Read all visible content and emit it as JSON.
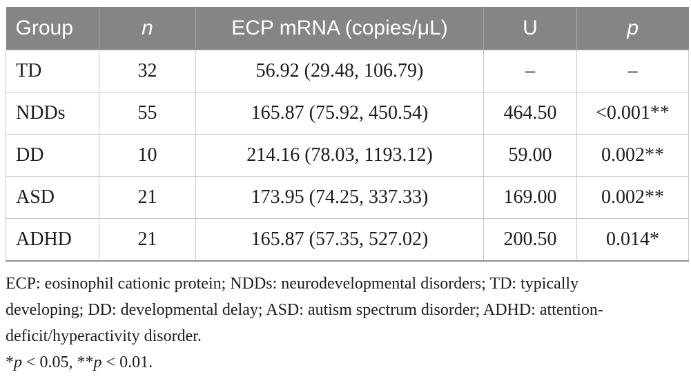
{
  "colors": {
    "header_bg": "#858585",
    "header_text": "#ffffff",
    "header_divider": "#a6a6a6",
    "cell_border": "#c9c9c9",
    "table_bottom_border": "#8f8f8f",
    "body_text": "#1c1c1c"
  },
  "table": {
    "columns": [
      {
        "label": "Group"
      },
      {
        "label": "n"
      },
      {
        "label": "ECP mRNA (copies/μL)"
      },
      {
        "label": "U"
      },
      {
        "label": "p"
      }
    ],
    "rows": [
      {
        "group": "TD",
        "n": "32",
        "ecp": "56.92 (29.48, 106.79)",
        "u": "–",
        "p": "–"
      },
      {
        "group": "NDDs",
        "n": "55",
        "ecp": "165.87 (75.92, 450.54)",
        "u": "464.50",
        "p": "<0.001**"
      },
      {
        "group": "DD",
        "n": "10",
        "ecp": "214.16 (78.03, 1193.12)",
        "u": "59.00",
        "p": "0.002**"
      },
      {
        "group": "ASD",
        "n": "21",
        "ecp": "173.95 (74.25, 337.33)",
        "u": "169.00",
        "p": "0.002**"
      },
      {
        "group": "ADHD",
        "n": "21",
        "ecp": "165.87 (57.35, 527.02)",
        "u": "200.50",
        "p": "0.014*"
      }
    ]
  },
  "footnotes": {
    "lines": [
      "ECP: eosinophil cationic protein; NDDs: neurodevelopmental disorders; TD: typically",
      "developing; DD: developmental delay; ASD: autism spectrum disorder; ADHD: attention-",
      "deficit/hyperactivity disorder."
    ],
    "significance": [
      {
        "text": "*"
      },
      {
        "text": "p",
        "italic": true
      },
      {
        "text": " < 0.05, **"
      },
      {
        "text": "p",
        "italic": true
      },
      {
        "text": " < 0.01."
      }
    ]
  }
}
